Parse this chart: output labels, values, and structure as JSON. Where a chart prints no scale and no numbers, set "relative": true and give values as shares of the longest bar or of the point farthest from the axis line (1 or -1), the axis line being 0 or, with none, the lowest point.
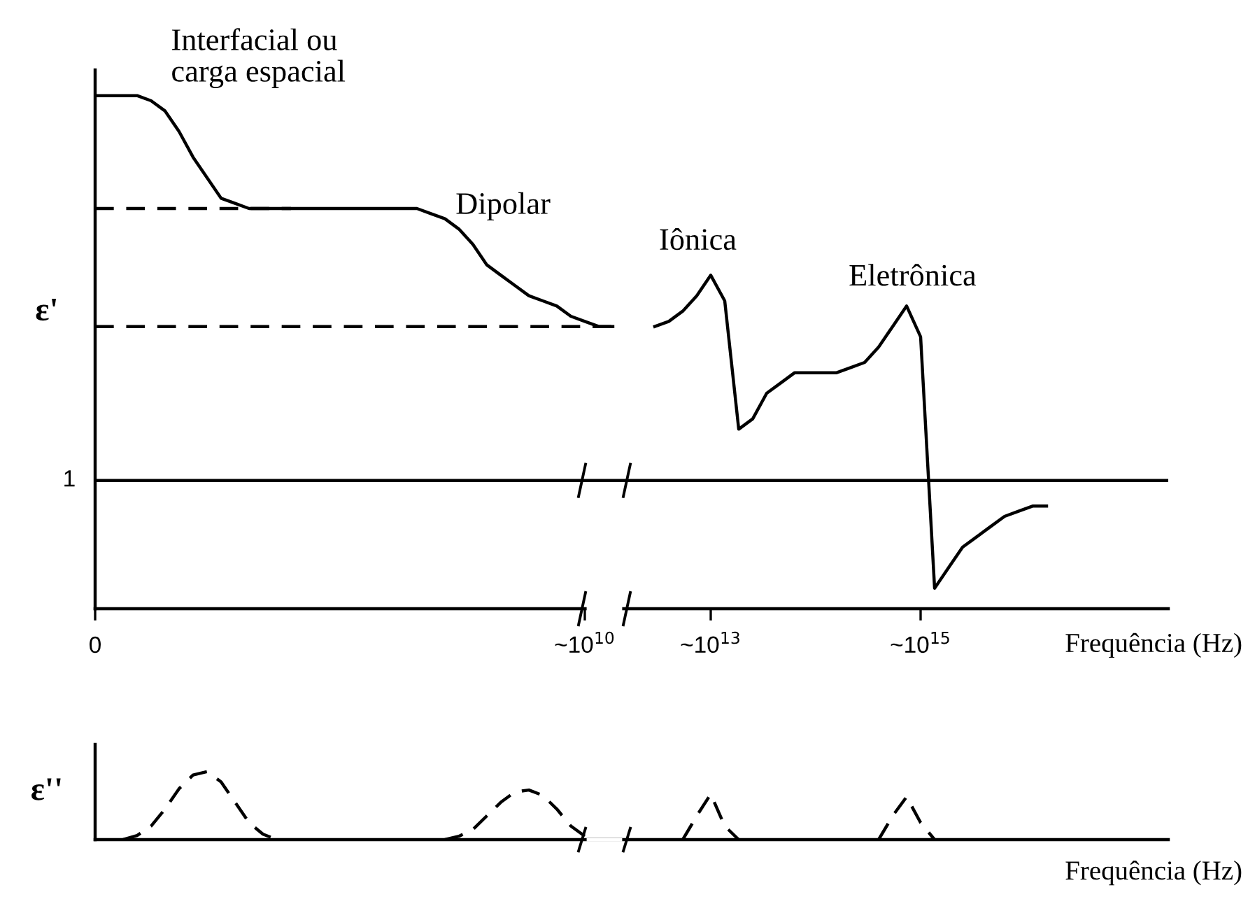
{
  "chart_data": [
    {
      "type": "line",
      "relative": true,
      "ylabel": "ε'",
      "xlabel": "Frequência (Hz)",
      "tick_labels": "x",
      "grid": false,
      "legend": false,
      "marker": "none",
      "categories": [
        "0",
        null,
        null,
        null,
        null,
        null,
        null,
        null,
        null,
        null,
        null,
        null,
        null,
        null,
        null,
        null,
        null,
        null,
        null,
        null,
        null,
        null,
        null,
        null,
        null,
        null,
        null,
        null,
        null,
        null,
        null,
        null,
        null,
        null,
        null,
        "~10$^{10}$",
        null,
        null,
        null,
        null,
        null,
        null,
        null,
        null,
        "~10$^{13}$",
        null,
        null,
        null,
        null,
        null,
        null,
        null,
        null,
        null,
        null,
        null,
        null,
        null,
        null,
        "~10$^{15}$",
        null,
        null,
        null,
        null,
        null,
        null,
        null,
        null,
        null,
        null,
        null,
        null,
        null,
        null,
        null,
        null,
        null
      ],
      "series": [
        {
          "color": "#000000",
          "line_style": "solid",
          "values": [
            1,
            1,
            1,
            1,
            0.99,
            0.97,
            0.93,
            0.88,
            0.84,
            0.8,
            0.79,
            0.78,
            0.78,
            0.78,
            0.78,
            0.78,
            0.78,
            0.78,
            0.78,
            0.78,
            0.78,
            0.78,
            0.78,
            0.78,
            0.77,
            0.76,
            0.74,
            0.71,
            0.67,
            0.65,
            0.63,
            0.61,
            0.6,
            0.59,
            0.57,
            0.56,
            0.55,
            0.55,
            null,
            null,
            0.55,
            0.56,
            0.58,
            0.61,
            0.65,
            0.6,
            0.35,
            0.37,
            0.42,
            0.44,
            0.46,
            0.46,
            0.46,
            0.46,
            0.47,
            0.48,
            0.51,
            0.55,
            0.59,
            0.53,
            0.04,
            0.08,
            0.12,
            0.14,
            0.16,
            0.18,
            0.19,
            0.2,
            0.2,
            null,
            null,
            null,
            null,
            null,
            null,
            null,
            null
          ]
        },
        {
          "color": "#000000",
          "line_style": "dashed",
          "values": [
            0.78,
            0.78,
            0.78,
            0.78,
            0.78,
            0.78,
            0.78,
            0.78,
            0.78,
            0.78,
            0.78,
            0.78,
            0.78,
            0.78,
            0.78,
            null,
            null,
            null,
            null,
            null,
            null,
            null,
            null,
            null,
            null,
            null,
            null,
            null,
            null,
            null,
            null,
            null,
            null,
            null,
            null,
            null,
            null,
            null,
            null,
            null,
            null,
            null,
            null,
            null,
            null,
            null,
            null,
            null,
            null,
            null,
            null,
            null,
            null,
            null,
            null,
            null,
            null,
            null,
            null,
            null,
            null,
            null,
            null,
            null,
            null,
            null,
            null,
            null,
            null,
            null,
            null,
            null,
            null,
            null,
            null,
            null,
            null
          ]
        },
        {
          "color": "#000000",
          "line_style": "dashed",
          "values": [
            0.55,
            0.55,
            0.55,
            0.55,
            0.55,
            0.55,
            0.55,
            0.55,
            0.55,
            0.55,
            0.55,
            0.55,
            0.55,
            0.55,
            0.55,
            0.55,
            0.55,
            0.55,
            0.55,
            0.55,
            0.55,
            0.55,
            0.55,
            0.55,
            0.55,
            0.55,
            0.55,
            0.55,
            0.55,
            0.55,
            0.55,
            0.55,
            0.55,
            0.55,
            0.55,
            0.55,
            0.55,
            0.55,
            null,
            null,
            null,
            null,
            null,
            null,
            null,
            null,
            null,
            null,
            null,
            null,
            null,
            null,
            null,
            null,
            null,
            null,
            null,
            null,
            null,
            null,
            null,
            null,
            null,
            null,
            null,
            null,
            null,
            null,
            null,
            null,
            null,
            null,
            null,
            null,
            null,
            null,
            null
          ]
        }
      ],
      "ref_lines": [
        {
          "axis": "y",
          "value": 0.25,
          "color": "#000000",
          "line_style": "solid"
        }
      ],
      "annotations": [
        "Interfacial ou\ncarga espacial",
        "Dipolar",
        "Iônica",
        "Eletrônica",
        {
          "text": "1",
          "x": "0",
          "y": 0.25
        }
      ]
    },
    {
      "type": "line",
      "relative": true,
      "ylabel": "ε''",
      "xlabel": "Frequência (Hz)",
      "tick_labels": false,
      "grid": false,
      "legend": false,
      "marker": "none",
      "categories": [
        null,
        null,
        null,
        null,
        null,
        null,
        null,
        null,
        null,
        null,
        null,
        null,
        null,
        null,
        null,
        null,
        null,
        null,
        null,
        null,
        null,
        null,
        null,
        null,
        null,
        null,
        null,
        null,
        null,
        null,
        null,
        null,
        null,
        null,
        null,
        null,
        null,
        null,
        null,
        null,
        null,
        null,
        null,
        null,
        null,
        null,
        null,
        null,
        null,
        null,
        null,
        null,
        null,
        null,
        null,
        null,
        null,
        null,
        null,
        null,
        null,
        null,
        null,
        null,
        null,
        null,
        null,
        null,
        null,
        null,
        null,
        null,
        null,
        null,
        null,
        null,
        null
      ],
      "series": [
        {
          "color": "#000000",
          "line_style": "dashed",
          "values": [
            null,
            null,
            0,
            0.06,
            0.2,
            0.45,
            0.75,
            0.95,
            1,
            0.85,
            0.55,
            0.25,
            0.08,
            0,
            null,
            null,
            null,
            null,
            null,
            null,
            null,
            null,
            null,
            null,
            null,
            0,
            0.05,
            0.15,
            0.35,
            0.55,
            0.7,
            0.73,
            0.65,
            0.45,
            0.2,
            0.05,
            null,
            null,
            null,
            null,
            null,
            null,
            0,
            0.35,
            0.67,
            0.2,
            0,
            null,
            null,
            null,
            null,
            null,
            null,
            null,
            null,
            null,
            0,
            0.35,
            0.63,
            0.25,
            0,
            null,
            null,
            null,
            null,
            null,
            null,
            null,
            null,
            null,
            null,
            null,
            null,
            null,
            null,
            null,
            null
          ]
        }
      ]
    }
  ]
}
